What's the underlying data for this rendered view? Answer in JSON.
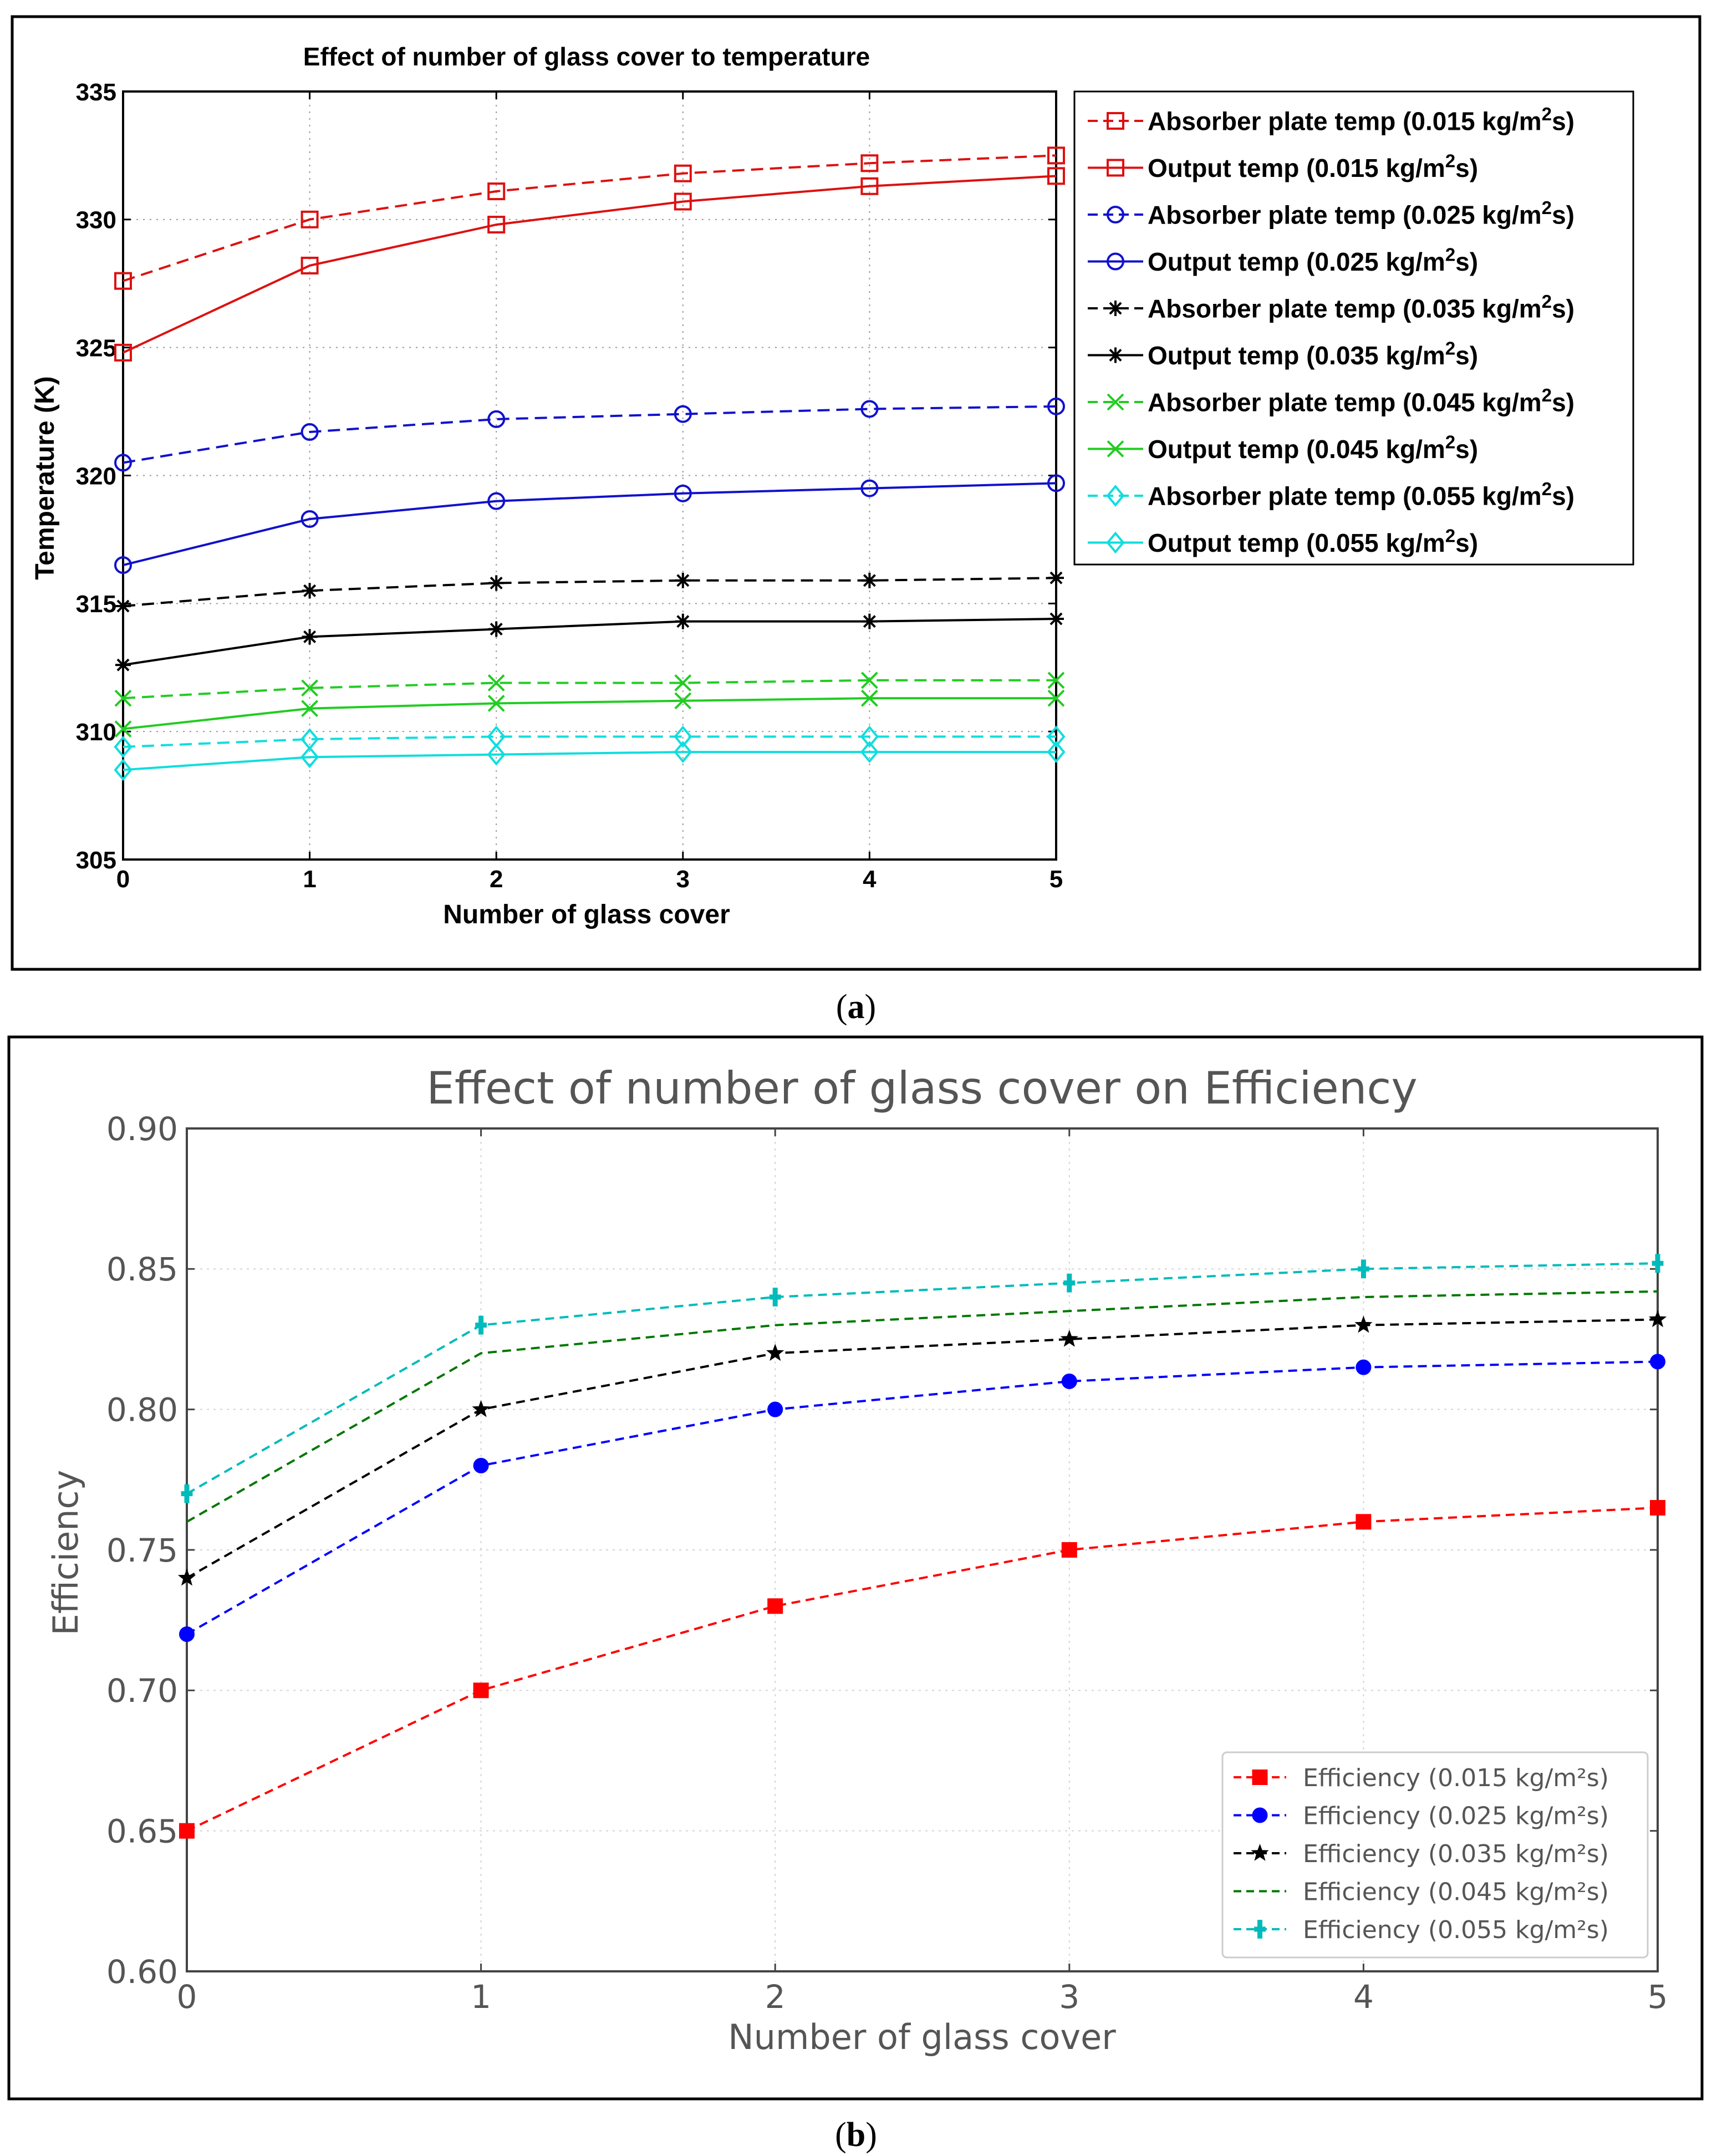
{
  "chart_data": [
    {
      "type": "line",
      "title": "Effect of number of glass cover to temperature",
      "xlabel": "Number of glass cover",
      "ylabel": "Temperature (K)",
      "x": [
        0,
        1,
        2,
        3,
        4,
        5
      ],
      "xlim": [
        0,
        5
      ],
      "ylim": [
        305,
        335
      ],
      "xticks": [
        "0",
        "1",
        "2",
        "3",
        "4",
        "5"
      ],
      "yticks": [
        "305",
        "310",
        "315",
        "320",
        "325",
        "330",
        "335"
      ],
      "grid": true,
      "legend_position": "outside-right",
      "series": [
        {
          "name": "Absorber plate temp (0.015 kg/m",
          "sup": "2",
          "tail": "s)",
          "color": "#dd1111",
          "dash": "dashed",
          "marker": "square",
          "values": [
            327.6,
            330.0,
            331.1,
            331.8,
            332.2,
            332.5
          ]
        },
        {
          "name": "Output temp (0.015 kg/m",
          "sup": "2",
          "tail": "s)",
          "color": "#dd1111",
          "dash": "solid",
          "marker": "square",
          "values": [
            324.8,
            328.2,
            329.8,
            330.7,
            331.3,
            331.7
          ]
        },
        {
          "name": "Absorber plate temp (0.025 kg/m",
          "sup": "2",
          "tail": "s)",
          "color": "#1111cc",
          "dash": "dashed",
          "marker": "circle",
          "values": [
            320.5,
            321.7,
            322.2,
            322.4,
            322.6,
            322.7
          ]
        },
        {
          "name": "Output temp (0.025 kg/m",
          "sup": "2",
          "tail": "s)",
          "color": "#1111cc",
          "dash": "solid",
          "marker": "circle",
          "values": [
            316.5,
            318.3,
            319.0,
            319.3,
            319.5,
            319.7
          ]
        },
        {
          "name": "Absorber plate temp (0.035 kg/m",
          "sup": "2",
          "tail": "s)",
          "color": "#000000",
          "dash": "dashed",
          "marker": "asterisk",
          "values": [
            314.9,
            315.5,
            315.8,
            315.9,
            315.9,
            316.0
          ]
        },
        {
          "name": "Output temp (0.035 kg/m",
          "sup": "2",
          "tail": "s)",
          "color": "#000000",
          "dash": "solid",
          "marker": "asterisk",
          "values": [
            312.6,
            313.7,
            314.0,
            314.3,
            314.3,
            314.4
          ]
        },
        {
          "name": "Absorber plate temp (0.045 kg/m",
          "sup": "2",
          "tail": "s)",
          "color": "#22cc22",
          "dash": "dashed",
          "marker": "x",
          "values": [
            311.3,
            311.7,
            311.9,
            311.9,
            312.0,
            312.0
          ]
        },
        {
          "name": "Output temp (0.045 kg/m",
          "sup": "2",
          "tail": "s)",
          "color": "#22cc22",
          "dash": "solid",
          "marker": "x",
          "values": [
            310.1,
            310.9,
            311.1,
            311.2,
            311.3,
            311.3
          ]
        },
        {
          "name": "Absorber plate temp (0.055 kg/m",
          "sup": "2",
          "tail": "s)",
          "color": "#11dddd",
          "dash": "dashed",
          "marker": "diamond",
          "values": [
            309.4,
            309.7,
            309.8,
            309.8,
            309.8,
            309.8
          ]
        },
        {
          "name": "Output temp (0.055 kg/m",
          "sup": "2",
          "tail": "s)",
          "color": "#11dddd",
          "dash": "solid",
          "marker": "diamond",
          "values": [
            308.5,
            309.0,
            309.1,
            309.2,
            309.2,
            309.2
          ]
        }
      ]
    },
    {
      "type": "line",
      "title": "Effect of number of glass cover on Efficiency",
      "xlabel": "Number of glass cover",
      "ylabel": "Efficiency",
      "x": [
        0,
        1,
        2,
        3,
        4,
        5
      ],
      "xlim": [
        0,
        5
      ],
      "ylim": [
        0.6,
        0.9
      ],
      "xticks": [
        "0",
        "1",
        "2",
        "3",
        "4",
        "5"
      ],
      "yticks": [
        "0.60",
        "0.65",
        "0.70",
        "0.75",
        "0.80",
        "0.85",
        "0.90"
      ],
      "grid": true,
      "legend_position": "lower-right",
      "series": [
        {
          "name": "Efficiency (0.015 kg/m²s)",
          "color": "#ff0000",
          "dash": "dashed",
          "marker": "square",
          "values": [
            0.65,
            0.7,
            0.73,
            0.75,
            0.76,
            0.765
          ]
        },
        {
          "name": "Efficiency (0.025 kg/m²s)",
          "color": "#0000ff",
          "dash": "dashed",
          "marker": "circle",
          "values": [
            0.72,
            0.78,
            0.8,
            0.81,
            0.815,
            0.817
          ]
        },
        {
          "name": "Efficiency (0.035 kg/m²s)",
          "color": "#000000",
          "dash": "dashed",
          "marker": "star",
          "values": [
            0.74,
            0.8,
            0.82,
            0.825,
            0.83,
            0.832
          ]
        },
        {
          "name": "Efficiency (0.045 kg/m²s)",
          "color": "#007700",
          "dash": "dashed",
          "marker": "none",
          "values": [
            0.76,
            0.82,
            0.83,
            0.835,
            0.84,
            0.842
          ]
        },
        {
          "name": "Efficiency (0.055 kg/m²s)",
          "color": "#00bbbb",
          "dash": "dashed",
          "marker": "plus",
          "values": [
            0.77,
            0.83,
            0.84,
            0.845,
            0.85,
            0.852
          ]
        }
      ]
    }
  ],
  "captions": {
    "a": "(a)",
    "b": "(b)"
  }
}
